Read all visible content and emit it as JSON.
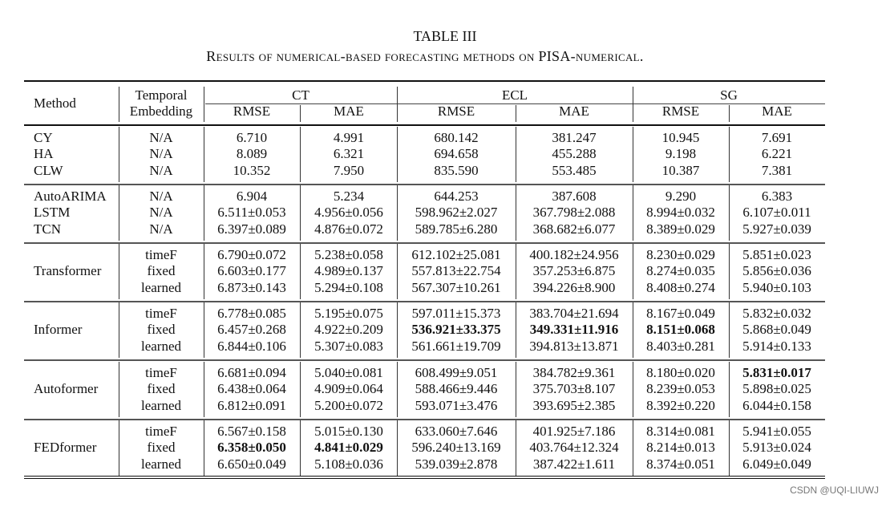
{
  "title": "TABLE III",
  "caption": "Results of numerical-based forecasting methods on PISA-numerical.",
  "header": {
    "method": "Method",
    "temporal_line1": "Temporal",
    "temporal_line2": "Embedding",
    "datasets": [
      "CT",
      "ECL",
      "SG"
    ],
    "metrics": [
      "RMSE",
      "MAE",
      "RMSE",
      "MAE",
      "RMSE",
      "MAE"
    ]
  },
  "blocks": [
    {
      "method": "",
      "rows": [
        {
          "name": "CY",
          "emb": "N/A",
          "values": [
            "6.710",
            "4.991",
            "680.142",
            "381.247",
            "10.945",
            "7.691"
          ],
          "bold": []
        },
        {
          "name": "HA",
          "emb": "N/A",
          "values": [
            "8.089",
            "6.321",
            "694.658",
            "455.288",
            "9.198",
            "6.221"
          ],
          "bold": []
        },
        {
          "name": "CLW",
          "emb": "N/A",
          "values": [
            "10.352",
            "7.950",
            "835.590",
            "553.485",
            "10.387",
            "7.381"
          ],
          "bold": []
        }
      ]
    },
    {
      "method": "",
      "rows": [
        {
          "name": "AutoARIMA",
          "emb": "N/A",
          "values": [
            "6.904",
            "5.234",
            "644.253",
            "387.608",
            "9.290",
            "6.383"
          ],
          "bold": []
        },
        {
          "name": "LSTM",
          "emb": "N/A",
          "values": [
            "6.511±0.053",
            "4.956±0.056",
            "598.962±2.027",
            "367.798±2.088",
            "8.994±0.032",
            "6.107±0.011"
          ],
          "bold": []
        },
        {
          "name": "TCN",
          "emb": "N/A",
          "values": [
            "6.397±0.089",
            "4.876±0.072",
            "589.785±6.280",
            "368.682±6.077",
            "8.389±0.029",
            "5.927±0.039"
          ],
          "bold": []
        }
      ]
    },
    {
      "method": "Transformer",
      "rows": [
        {
          "name": "",
          "emb": "timeF",
          "values": [
            "6.790±0.072",
            "5.238±0.058",
            "612.102±25.081",
            "400.182±24.956",
            "8.230±0.029",
            "5.851±0.023"
          ],
          "bold": []
        },
        {
          "name": "",
          "emb": "fixed",
          "values": [
            "6.603±0.177",
            "4.989±0.137",
            "557.813±22.754",
            "357.253±6.875",
            "8.274±0.035",
            "5.856±0.036"
          ],
          "bold": []
        },
        {
          "name": "",
          "emb": "learned",
          "values": [
            "6.873±0.143",
            "5.294±0.108",
            "567.307±10.261",
            "394.226±8.900",
            "8.408±0.274",
            "5.940±0.103"
          ],
          "bold": []
        }
      ]
    },
    {
      "method": "Informer",
      "rows": [
        {
          "name": "",
          "emb": "timeF",
          "values": [
            "6.778±0.085",
            "5.195±0.075",
            "597.011±15.373",
            "383.704±21.694",
            "8.167±0.049",
            "5.832±0.032"
          ],
          "bold": []
        },
        {
          "name": "",
          "emb": "fixed",
          "values": [
            "6.457±0.268",
            "4.922±0.209",
            "536.921±33.375",
            "349.331±11.916",
            "8.151±0.068",
            "5.868±0.049"
          ],
          "bold": [
            2,
            3,
            4
          ]
        },
        {
          "name": "",
          "emb": "learned",
          "values": [
            "6.844±0.106",
            "5.307±0.083",
            "561.661±19.709",
            "394.813±13.871",
            "8.403±0.281",
            "5.914±0.133"
          ],
          "bold": []
        }
      ]
    },
    {
      "method": "Autoformer",
      "rows": [
        {
          "name": "",
          "emb": "timeF",
          "values": [
            "6.681±0.094",
            "5.040±0.081",
            "608.499±9.051",
            "384.782±9.361",
            "8.180±0.020",
            "5.831±0.017"
          ],
          "bold": [
            5
          ]
        },
        {
          "name": "",
          "emb": "fixed",
          "values": [
            "6.438±0.064",
            "4.909±0.064",
            "588.466±9.446",
            "375.703±8.107",
            "8.239±0.053",
            "5.898±0.025"
          ],
          "bold": []
        },
        {
          "name": "",
          "emb": "learned",
          "values": [
            "6.812±0.091",
            "5.200±0.072",
            "593.071±3.476",
            "393.695±2.385",
            "8.392±0.220",
            "6.044±0.158"
          ],
          "bold": []
        }
      ]
    },
    {
      "method": "FEDformer",
      "rows": [
        {
          "name": "",
          "emb": "timeF",
          "values": [
            "6.567±0.158",
            "5.015±0.130",
            "633.060±7.646",
            "401.925±7.186",
            "8.314±0.081",
            "5.941±0.055"
          ],
          "bold": []
        },
        {
          "name": "",
          "emb": "fixed",
          "values": [
            "6.358±0.050",
            "4.841±0.029",
            "596.240±13.169",
            "403.764±12.324",
            "8.214±0.013",
            "5.913±0.024"
          ],
          "bold": [
            0,
            1
          ]
        },
        {
          "name": "",
          "emb": "learned",
          "values": [
            "6.650±0.049",
            "5.108±0.036",
            "539.039±2.878",
            "387.422±1.611",
            "8.374±0.051",
            "6.049±0.049"
          ],
          "bold": []
        }
      ]
    }
  ],
  "watermark": "CSDN @UQI-LIUWJ"
}
